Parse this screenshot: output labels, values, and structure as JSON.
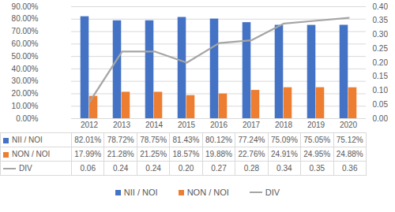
{
  "chart_data": {
    "type": "bar",
    "categories": [
      "2012",
      "2013",
      "2014",
      "2015",
      "2016",
      "2017",
      "2018",
      "2019",
      "2020"
    ],
    "series": [
      {
        "name": "NII / NOI",
        "type": "bar",
        "color": "#4472C4",
        "values": [
          82.01,
          78.72,
          78.75,
          81.43,
          80.12,
          77.24,
          75.09,
          75.05,
          75.12
        ],
        "value_labels": [
          "82.01%",
          "78.72%",
          "78.75%",
          "81.43%",
          "80.12%",
          "77.24%",
          "75.09%",
          "75.05%",
          "75.12%"
        ]
      },
      {
        "name": "NON / NOI",
        "type": "bar",
        "color": "#ED7D31",
        "values": [
          17.99,
          21.28,
          21.25,
          18.57,
          19.88,
          22.76,
          24.91,
          24.95,
          24.88
        ],
        "value_labels": [
          "17.99%",
          "21.28%",
          "21.25%",
          "18.57%",
          "19.88%",
          "22.76%",
          "24.91%",
          "24.95%",
          "24.88%"
        ]
      },
      {
        "name": "DIV",
        "type": "line",
        "axis": "y2",
        "color": "#A5A5A5",
        "values": [
          0.06,
          0.24,
          0.24,
          0.2,
          0.27,
          0.28,
          0.34,
          0.35,
          0.36
        ],
        "value_labels": [
          "0.06",
          "0.24",
          "0.24",
          "0.20",
          "0.27",
          "0.28",
          "0.34",
          "0.35",
          "0.36"
        ]
      }
    ],
    "ylim": [
      0,
      90
    ],
    "yticks": [
      {
        "value": 0,
        "label": "0.00%"
      },
      {
        "value": 10,
        "label": "10.00%"
      },
      {
        "value": 20,
        "label": "20.00%"
      },
      {
        "value": 30,
        "label": "30.00%"
      },
      {
        "value": 40,
        "label": "40.00%"
      },
      {
        "value": 50,
        "label": "50.00%"
      },
      {
        "value": 60,
        "label": "60.00%"
      },
      {
        "value": 70,
        "label": "70.00%"
      },
      {
        "value": 80,
        "label": "80.00%"
      },
      {
        "value": 90,
        "label": "90.00%"
      }
    ],
    "y2lim": [
      0,
      0.4
    ],
    "y2ticks": [
      {
        "value": 0,
        "label": "0.00"
      },
      {
        "value": 0.05,
        "label": "0.05"
      },
      {
        "value": 0.1,
        "label": "0.10"
      },
      {
        "value": 0.15,
        "label": "0.15"
      },
      {
        "value": 0.2,
        "label": "0.20"
      },
      {
        "value": 0.25,
        "label": "0.25"
      },
      {
        "value": 0.3,
        "label": "0.30"
      },
      {
        "value": 0.35,
        "label": "0.35"
      },
      {
        "value": 0.4,
        "label": "0.40"
      }
    ],
    "grid": true,
    "legend": "bottom",
    "data_labels": true
  }
}
